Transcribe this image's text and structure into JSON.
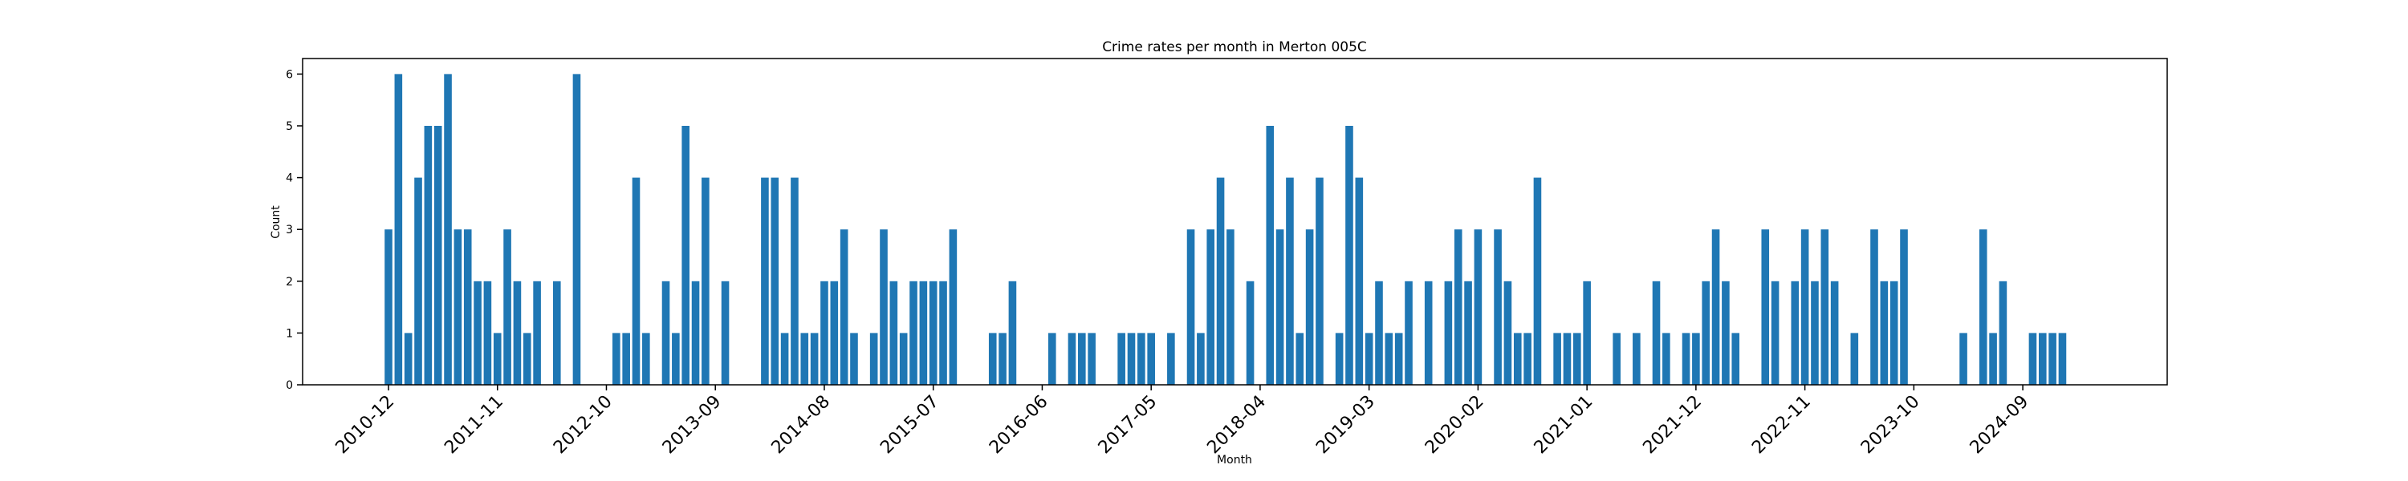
{
  "chart_data": {
    "type": "bar",
    "title": "Crime rates per month in Merton 005C",
    "xlabel": "Month",
    "ylabel": "Count",
    "color": "#1f77b4",
    "categories": [
      "2010-12",
      null,
      null,
      null,
      null,
      null,
      null,
      null,
      null,
      null,
      null,
      "2011-11",
      null,
      null,
      null,
      null,
      null,
      null,
      null,
      null,
      null,
      null,
      "2012-10",
      null,
      null,
      null,
      null,
      null,
      null,
      null,
      null,
      null,
      null,
      "2013-09",
      null,
      null,
      null,
      null,
      null,
      null,
      null,
      null,
      null,
      null,
      "2014-08",
      null,
      null,
      null,
      null,
      null,
      null,
      null,
      null,
      null,
      null,
      "2015-07",
      null,
      null,
      null,
      null,
      null,
      null,
      null,
      null,
      null,
      null,
      "2016-06",
      null,
      null,
      null,
      null,
      null,
      null,
      null,
      null,
      null,
      null,
      "2017-05",
      null,
      null,
      null,
      null,
      null,
      null,
      null,
      null,
      null,
      null,
      "2018-04",
      null,
      null,
      null,
      null,
      null,
      null,
      null,
      null,
      null,
      null,
      "2019-03",
      null,
      null,
      null,
      null,
      null,
      null,
      null,
      null,
      null,
      null,
      "2020-02",
      null,
      null,
      null,
      null,
      null,
      null,
      null,
      null,
      null,
      null,
      "2021-01",
      null,
      null,
      null,
      null,
      null,
      null,
      null,
      null,
      null,
      null,
      "2021-12",
      null,
      null,
      null,
      null,
      null,
      null,
      null,
      null,
      null,
      null,
      "2022-11",
      null,
      null,
      null,
      null,
      null,
      null,
      null,
      null,
      null,
      null,
      "2023-10",
      null,
      null,
      null,
      null,
      null,
      null,
      null,
      null,
      null,
      null,
      "2024-09",
      null,
      null,
      null,
      null
    ],
    "values": [
      3,
      6,
      1,
      4,
      5,
      5,
      6,
      3,
      3,
      2,
      2,
      1,
      3,
      2,
      1,
      2,
      0,
      2,
      0,
      6,
      0,
      0,
      0,
      1,
      1,
      4,
      1,
      0,
      2,
      1,
      5,
      2,
      4,
      0,
      2,
      0,
      0,
      0,
      4,
      4,
      1,
      4,
      1,
      1,
      2,
      2,
      3,
      1,
      0,
      1,
      3,
      2,
      1,
      2,
      2,
      2,
      2,
      3,
      0,
      0,
      0,
      1,
      1,
      2,
      0,
      0,
      0,
      1,
      0,
      1,
      1,
      1,
      0,
      0,
      1,
      1,
      1,
      1,
      0,
      1,
      0,
      3,
      1,
      3,
      4,
      3,
      0,
      2,
      0,
      5,
      3,
      4,
      1,
      3,
      4,
      0,
      1,
      5,
      4,
      1,
      2,
      1,
      1,
      2,
      0,
      2,
      0,
      2,
      3,
      2,
      3,
      0,
      3,
      2,
      1,
      1,
      4,
      0,
      1,
      1,
      1,
      2,
      0,
      0,
      1,
      0,
      1,
      0,
      2,
      1,
      0,
      1,
      1,
      2,
      3,
      2,
      1,
      0,
      0,
      3,
      2,
      0,
      2,
      3,
      2,
      3,
      2,
      0,
      1,
      0,
      3,
      2,
      2,
      3,
      0,
      0,
      0,
      0,
      0,
      1,
      0,
      3,
      1,
      2,
      0,
      0,
      1,
      1,
      1,
      1
    ],
    "ylim": [
      0,
      6.3
    ],
    "yticks": [
      0,
      1,
      2,
      3,
      4,
      5,
      6
    ],
    "grid": false
  }
}
